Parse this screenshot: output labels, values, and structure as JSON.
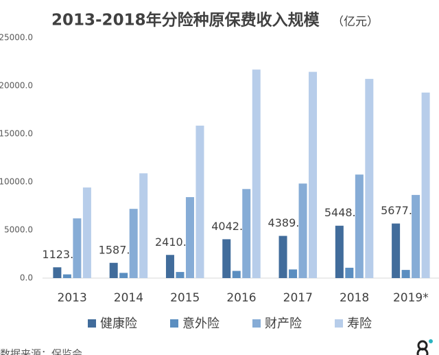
{
  "chart_data": {
    "type": "bar",
    "title": "2013-2018年分险种原保费收入规模",
    "unit": "（亿元）",
    "source": "数据来源：保监会",
    "categories": [
      "2013",
      "2014",
      "2015",
      "2016",
      "2017",
      "2018",
      "2019*"
    ],
    "series": [
      {
        "name": "健康险",
        "color": "#416c9b",
        "values": [
          1123.5,
          1587.2,
          2410.5,
          4042.5,
          4389.5,
          5448.1,
          5677.0
        ],
        "value_labels": [
          "1123.5",
          "1587.2",
          "2410.5",
          "4042.5",
          "4389.5",
          "5448.1",
          "5677.0"
        ]
      },
      {
        "name": "意外险",
        "color": "#5b8ec0",
        "values": [
          386,
          542,
          636,
          750,
          901,
          1076,
          850
        ]
      },
      {
        "name": "财产险",
        "color": "#86acd6",
        "values": [
          6212,
          7203,
          8423,
          9266,
          9835,
          10770,
          8650
        ]
      },
      {
        "name": "寿险",
        "color": "#b7cdea",
        "values": [
          9425,
          10902,
          15860,
          21692,
          21456,
          20723,
          19300
        ]
      }
    ],
    "ylim": [
      0,
      25000
    ],
    "yticks": [
      {
        "value": 0,
        "label": "0.0"
      },
      {
        "value": 5000,
        "label": "5000.0"
      },
      {
        "value": 10000,
        "label": "10000.0"
      },
      {
        "value": 15000,
        "label": "15000.0"
      },
      {
        "value": 20000,
        "label": "20000.0"
      },
      {
        "value": 25000,
        "label": "25000.0"
      }
    ],
    "grid": false
  }
}
